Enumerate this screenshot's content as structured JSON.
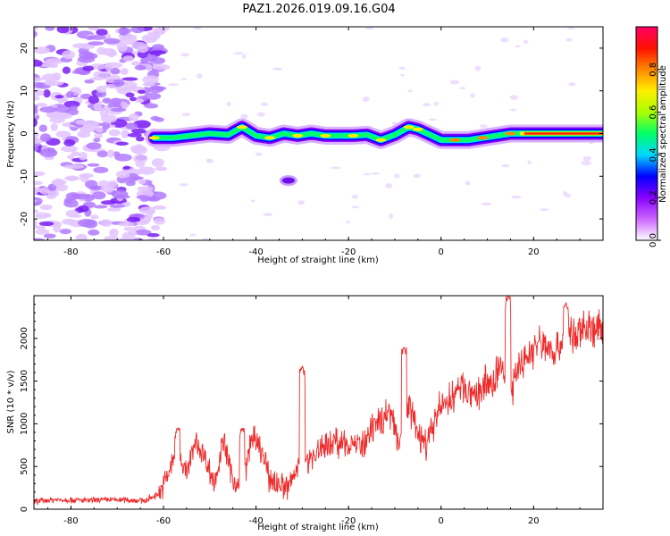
{
  "title": "PAZ1.2026.019.09.16.G04",
  "chart_data": [
    {
      "type": "heatmap",
      "name": "spectrogram",
      "xlabel": "Height of straight line (km)",
      "ylabel": "Frequency (Hz)",
      "xlim": [
        -88,
        35
      ],
      "ylim": [
        -25,
        25
      ],
      "xticks": [
        -80,
        -60,
        -40,
        -20,
        0,
        20
      ],
      "yticks": [
        -20,
        -10,
        0,
        10,
        20
      ],
      "colorbar": {
        "label": "Normalized spectral amplitude",
        "range": [
          0,
          1
        ],
        "ticks": [
          "0.0",
          "0.2",
          "0.4",
          "0.6",
          "0.8"
        ],
        "tick_values": [
          0.0,
          0.2,
          0.4,
          0.6,
          0.8
        ],
        "colors": [
          "#ffffff",
          "#cc66ff",
          "#8800ff",
          "#0000ff",
          "#00d8ff",
          "#00ff66",
          "#aaff00",
          "#ffee00",
          "#ff8800",
          "#ff1100",
          "#ff0066"
        ]
      },
      "ridge": {
        "x": [
          -62,
          -58,
          -54,
          -50,
          -46,
          -43,
          -40,
          -37,
          -34,
          -31,
          -28,
          -25,
          -22,
          -19,
          -16,
          -13,
          -10,
          -7,
          -5,
          -2,
          0,
          3,
          6,
          9,
          12,
          15,
          20,
          25,
          30,
          35
        ],
        "y": [
          -1.0,
          -1.0,
          -0.5,
          0.0,
          -0.3,
          1.5,
          -0.5,
          -1.0,
          0.0,
          -0.5,
          0.0,
          -0.5,
          -0.5,
          -0.5,
          -0.3,
          -1.5,
          -0.3,
          1.5,
          1.0,
          -0.5,
          -1.5,
          -1.5,
          -1.5,
          -1.0,
          -0.5,
          0.0,
          0.0,
          0.0,
          0.0,
          0.0
        ]
      },
      "side_blob": {
        "x": -33,
        "y": -11
      }
    },
    {
      "type": "line",
      "name": "snr",
      "xlabel": "Height of straight line (km)",
      "ylabel": "SNR (10 * v/v)",
      "xlim": [
        -88,
        35
      ],
      "ylim": [
        0,
        2500
      ],
      "xticks": [
        -80,
        -60,
        -40,
        -20,
        0,
        20
      ],
      "yticks": [
        0,
        500,
        1000,
        1500,
        2000
      ],
      "color": "#ee2a2a",
      "series": {
        "x": [
          -88,
          -84,
          -80,
          -76,
          -72,
          -68,
          -64,
          -61,
          -59,
          -57,
          -55,
          -53,
          -51,
          -49,
          -47,
          -45,
          -43,
          -41,
          -39,
          -37,
          -35,
          -33,
          -31,
          -30,
          -29,
          -27,
          -25,
          -23,
          -21,
          -19,
          -17,
          -15,
          -13,
          -11,
          -9,
          -7,
          -5,
          -3,
          -1,
          1,
          3,
          5,
          7,
          9,
          11,
          13,
          15,
          17,
          19,
          21,
          23,
          25,
          27,
          29,
          31,
          33,
          35
        ],
        "y": [
          90,
          110,
          110,
          100,
          110,
          110,
          100,
          180,
          400,
          700,
          420,
          800,
          600,
          300,
          800,
          350,
          200,
          850,
          700,
          350,
          300,
          250,
          500,
          1000,
          550,
          650,
          750,
          800,
          750,
          800,
          700,
          900,
          1050,
          1150,
          800,
          1250,
          850,
          750,
          1100,
          1250,
          1350,
          1450,
          1250,
          1450,
          1450,
          1700,
          1300,
          1700,
          1800,
          1950,
          1900,
          1850,
          2050,
          2000,
          2150,
          2100,
          2100
        ]
      },
      "spikes": [
        {
          "x": -57,
          "y": 950
        },
        {
          "x": -43,
          "y": 950
        },
        {
          "x": -30,
          "y": 1680
        },
        {
          "x": -8,
          "y": 1900
        },
        {
          "x": 14.5,
          "y": 2500
        },
        {
          "x": 27,
          "y": 2420
        }
      ]
    }
  ]
}
